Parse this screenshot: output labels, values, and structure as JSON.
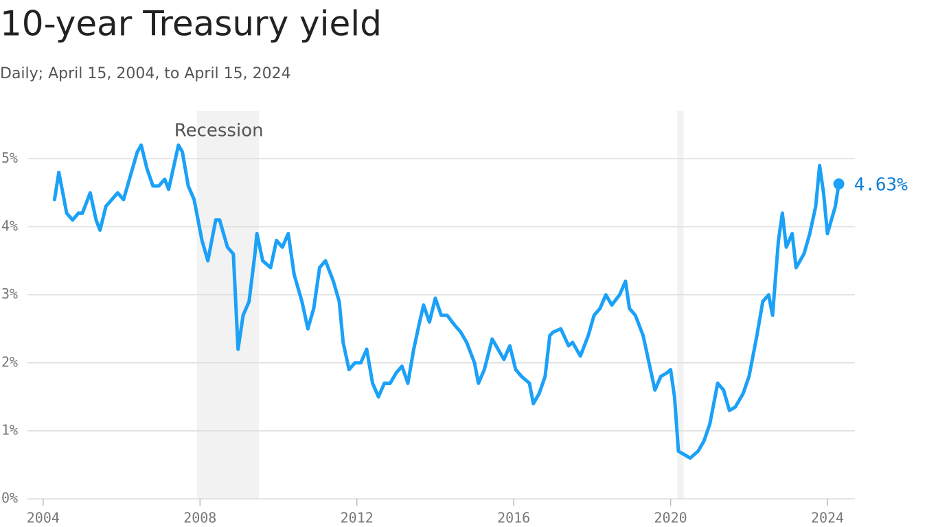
{
  "chart_data": {
    "type": "line",
    "title": "10-year Treasury yield",
    "subtitle": "Daily; April 15, 2004, to April 15, 2024",
    "color": "#1ba1f7",
    "x": [
      2004.29,
      2004.4,
      2004.5,
      2004.6,
      2004.75,
      2004.9,
      2005.0,
      2005.2,
      2005.35,
      2005.45,
      2005.6,
      2005.75,
      2005.9,
      2006.05,
      2006.2,
      2006.4,
      2006.5,
      2006.65,
      2006.8,
      2006.95,
      2007.1,
      2007.2,
      2007.45,
      2007.55,
      2007.7,
      2007.85,
      2007.95,
      2008.05,
      2008.2,
      2008.4,
      2008.5,
      2008.7,
      2008.85,
      2008.97,
      2009.1,
      2009.25,
      2009.4,
      2009.45,
      2009.6,
      2009.8,
      2009.95,
      2010.1,
      2010.25,
      2010.4,
      2010.6,
      2010.75,
      2010.9,
      2011.05,
      2011.2,
      2011.4,
      2011.55,
      2011.65,
      2011.8,
      2011.95,
      2012.1,
      2012.25,
      2012.4,
      2012.55,
      2012.7,
      2012.85,
      2013.0,
      2013.15,
      2013.3,
      2013.45,
      2013.6,
      2013.7,
      2013.85,
      2014.0,
      2014.15,
      2014.3,
      2014.5,
      2014.65,
      2014.8,
      2015.0,
      2015.1,
      2015.25,
      2015.45,
      2015.6,
      2015.75,
      2015.9,
      2016.05,
      2016.2,
      2016.4,
      2016.5,
      2016.65,
      2016.8,
      2016.92,
      2017.0,
      2017.2,
      2017.4,
      2017.5,
      2017.7,
      2017.9,
      2018.05,
      2018.2,
      2018.35,
      2018.5,
      2018.7,
      2018.85,
      2018.95,
      2019.1,
      2019.3,
      2019.45,
      2019.6,
      2019.75,
      2019.9,
      2020.0,
      2020.1,
      2020.2,
      2020.35,
      2020.5,
      2020.7,
      2020.85,
      2021.0,
      2021.2,
      2021.35,
      2021.5,
      2021.65,
      2021.85,
      2022.0,
      2022.2,
      2022.35,
      2022.5,
      2022.6,
      2022.75,
      2022.85,
      2022.95,
      2023.1,
      2023.2,
      2023.4,
      2023.55,
      2023.7,
      2023.8,
      2023.9,
      2024.0,
      2024.1,
      2024.2,
      2024.29
    ],
    "values": [
      4.4,
      4.8,
      4.5,
      4.2,
      4.1,
      4.2,
      4.2,
      4.5,
      4.1,
      3.95,
      4.3,
      4.4,
      4.5,
      4.4,
      4.7,
      5.1,
      5.2,
      4.85,
      4.6,
      4.6,
      4.7,
      4.55,
      5.2,
      5.1,
      4.6,
      4.4,
      4.1,
      3.8,
      3.5,
      4.1,
      4.1,
      3.7,
      3.6,
      2.2,
      2.7,
      2.9,
      3.6,
      3.9,
      3.5,
      3.4,
      3.8,
      3.7,
      3.9,
      3.3,
      2.9,
      2.5,
      2.8,
      3.4,
      3.5,
      3.2,
      2.9,
      2.3,
      1.9,
      2.0,
      2.0,
      2.2,
      1.7,
      1.5,
      1.7,
      1.7,
      1.85,
      1.95,
      1.7,
      2.2,
      2.6,
      2.85,
      2.6,
      2.95,
      2.7,
      2.7,
      2.55,
      2.45,
      2.3,
      2.0,
      1.7,
      1.9,
      2.35,
      2.2,
      2.05,
      2.25,
      1.9,
      1.8,
      1.7,
      1.4,
      1.55,
      1.8,
      2.4,
      2.45,
      2.5,
      2.25,
      2.3,
      2.1,
      2.4,
      2.7,
      2.8,
      3.0,
      2.85,
      3.0,
      3.2,
      2.8,
      2.7,
      2.4,
      2.0,
      1.6,
      1.8,
      1.85,
      1.9,
      1.5,
      0.7,
      0.65,
      0.6,
      0.7,
      0.85,
      1.1,
      1.7,
      1.6,
      1.3,
      1.35,
      1.55,
      1.8,
      2.4,
      2.9,
      3.0,
      2.7,
      3.8,
      4.2,
      3.7,
      3.9,
      3.4,
      3.6,
      3.9,
      4.3,
      4.9,
      4.5,
      3.9,
      4.1,
      4.3,
      4.63
    ],
    "annotation": {
      "x": 2024.29,
      "y": 4.63,
      "label": "4.63%"
    },
    "recessions": [
      {
        "start": 2007.92,
        "end": 2009.5,
        "label": "Recession"
      },
      {
        "start": 2020.17,
        "end": 2020.33
      }
    ],
    "xlim": [
      2003.6,
      2024.7
    ],
    "ylim": [
      0,
      5.7
    ],
    "xticks": [
      2004,
      2008,
      2012,
      2016,
      2020,
      2024
    ],
    "yticks": [
      {
        "value": 0,
        "label": "0%"
      },
      {
        "value": 1,
        "label": "1%"
      },
      {
        "value": 2,
        "label": "2%"
      },
      {
        "value": 3,
        "label": "3%"
      },
      {
        "value": 4,
        "label": "4%"
      },
      {
        "value": 5,
        "label": "5%"
      }
    ],
    "grid": true
  }
}
